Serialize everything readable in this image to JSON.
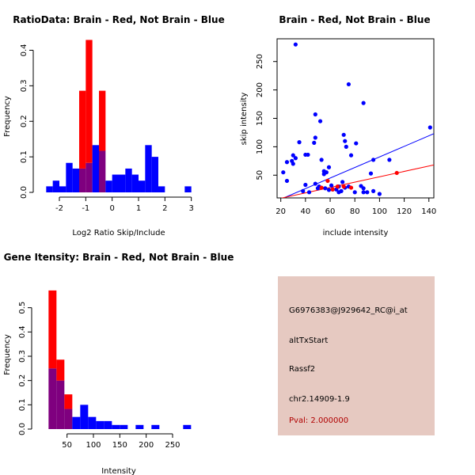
{
  "colors": {
    "brain": "#ff0000",
    "not_brain": "#0000ff",
    "overlap": "#7f007f",
    "panel_bg": "#e6c9c1",
    "pval_text": "#b00000"
  },
  "chart_data": [
    {
      "type": "histogram",
      "title": "RatioData: Brain - Red, Not Brain - Blue",
      "xlabel": "Log2 Ratio Skip/Include",
      "ylabel": "Frequency",
      "xlim": [
        -2.75,
        3.25
      ],
      "ylim": [
        0,
        0.43
      ],
      "bin_width": 0.25,
      "bin_starts": [
        -2.5,
        -2.25,
        -2.0,
        -1.75,
        -1.5,
        -1.25,
        -1.0,
        -0.75,
        -0.5,
        -0.25,
        0.0,
        0.25,
        0.5,
        0.75,
        1.0,
        1.25,
        1.5,
        1.75,
        2.0,
        2.25,
        2.5,
        2.75
      ],
      "series": [
        {
          "name": "Not Brain",
          "color": "blue",
          "values": [
            0.017,
            0.033,
            0.017,
            0.083,
            0.067,
            0.067,
            0.083,
            0.133,
            0.117,
            0.033,
            0.05,
            0.05,
            0.067,
            0.05,
            0.033,
            0.133,
            0.1,
            0.017,
            0.0,
            0.0,
            0.0,
            0.017
          ]
        },
        {
          "name": "Brain",
          "color": "red",
          "values": [
            0.0,
            0.0,
            0.0,
            0.0,
            0.0,
            0.286,
            0.429,
            0.0,
            0.286,
            0.0,
            0.0,
            0.0,
            0.0,
            0.0,
            0.0,
            0.0,
            0.0,
            0.0,
            0.0,
            0.0,
            0.0,
            0.0
          ]
        }
      ],
      "x_ticks": [
        -2,
        -1,
        0,
        1,
        2,
        3
      ],
      "x_tick_labels": [
        "-2",
        "-1",
        "0",
        "1",
        "2",
        "3"
      ],
      "y_ticks": [
        0,
        0.1,
        0.2,
        0.3,
        0.4
      ],
      "y_tick_labels": [
        "0.0",
        "0.1",
        "0.2",
        "0.3",
        "0.4"
      ]
    },
    {
      "type": "scatter",
      "title": "Brain - Red, Not Brain - Blue",
      "xlabel": "include intensity",
      "ylabel": "skip intensity",
      "xlim": [
        17,
        144
      ],
      "ylim": [
        10,
        290
      ],
      "x_ticks": [
        20,
        40,
        60,
        80,
        100,
        120,
        140
      ],
      "x_tick_labels": [
        "20",
        "40",
        "60",
        "80",
        "100",
        "120",
        "140"
      ],
      "y_ticks": [
        50,
        100,
        150,
        200,
        250
      ],
      "y_tick_labels": [
        "50",
        "100",
        "150",
        "200",
        "250"
      ],
      "series": [
        {
          "name": "Not Brain",
          "color": "blue",
          "points": [
            [
              32,
              280
            ],
            [
              75,
              210
            ],
            [
              48,
              157
            ],
            [
              87,
              177
            ],
            [
              52,
              145
            ],
            [
              48,
              116
            ],
            [
              47,
              107
            ],
            [
              35,
              108
            ],
            [
              30,
              85
            ],
            [
              29,
              75
            ],
            [
              32,
              80
            ],
            [
              30,
              70
            ],
            [
              40,
              86
            ],
            [
              42,
              86
            ],
            [
              53,
              77
            ],
            [
              71,
              121
            ],
            [
              81,
              106
            ],
            [
              73,
              100
            ],
            [
              141,
              134
            ],
            [
              25,
              73
            ],
            [
              22,
              55
            ],
            [
              25,
              40
            ],
            [
              40,
              33
            ],
            [
              43,
              20
            ],
            [
              38,
              22
            ],
            [
              48,
              35
            ],
            [
              51,
              30
            ],
            [
              50,
              27
            ],
            [
              55,
              57
            ],
            [
              59,
              64
            ],
            [
              59,
              24
            ],
            [
              56,
              27
            ],
            [
              61,
              32
            ],
            [
              62,
              25
            ],
            [
              65,
              25
            ],
            [
              67,
              30
            ],
            [
              67,
              20
            ],
            [
              69,
              22
            ],
            [
              70,
              38
            ],
            [
              72,
              28
            ],
            [
              72,
              110
            ],
            [
              75,
              30
            ],
            [
              77,
              85
            ],
            [
              80,
              20
            ],
            [
              85,
              31
            ],
            [
              87,
              20
            ],
            [
              87,
              27
            ],
            [
              90,
              20
            ],
            [
              93,
              53
            ],
            [
              95,
              77
            ],
            [
              100,
              17
            ],
            [
              108,
              77
            ],
            [
              95,
              22
            ],
            [
              55,
              52
            ],
            [
              57,
              55
            ]
          ]
        },
        {
          "name": "Brain",
          "color": "red",
          "points": [
            [
              58,
              40
            ],
            [
              62,
              25
            ],
            [
              66,
              30
            ],
            [
              71,
              30
            ],
            [
              77,
              28
            ],
            [
              114,
              54
            ],
            [
              53,
              28
            ]
          ]
        }
      ],
      "fit_lines": [
        {
          "name": "Not Brain fit",
          "color": "blue",
          "from": [
            17,
            5
          ],
          "to": [
            144,
            123
          ]
        },
        {
          "name": "Brain fit",
          "color": "red",
          "from": [
            17,
            8
          ],
          "to": [
            144,
            68
          ]
        }
      ]
    },
    {
      "type": "histogram",
      "title": "Gene Itensity: Brain - Red, Not Brain - Blue",
      "xlabel": "Intensity",
      "ylabel": "Frequency",
      "xlim": [
        -5,
        295
      ],
      "ylim": [
        0,
        0.6
      ],
      "bin_width": 15,
      "bin_starts": [
        15,
        30,
        45,
        60,
        75,
        90,
        105,
        120,
        135,
        150,
        165,
        180,
        195,
        210,
        225,
        240,
        255,
        270
      ],
      "series": [
        {
          "name": "Not Brain",
          "color": "blue",
          "values": [
            0.25,
            0.2,
            0.083,
            0.05,
            0.1,
            0.05,
            0.033,
            0.033,
            0.017,
            0.017,
            0.0,
            0.017,
            0.0,
            0.017,
            0.0,
            0.0,
            0.0,
            0.017
          ]
        },
        {
          "name": "Brain",
          "color": "red",
          "values": [
            0.571,
            0.286,
            0.143,
            0.0,
            0.0,
            0.0,
            0.0,
            0.0,
            0.0,
            0.0,
            0.0,
            0.0,
            0.0,
            0.0,
            0.0,
            0.0,
            0.0,
            0.0
          ]
        }
      ],
      "x_ticks": [
        50,
        100,
        150,
        200,
        250
      ],
      "x_tick_labels": [
        "50",
        "100",
        "150",
        "200",
        "250"
      ],
      "y_ticks": [
        0,
        0.1,
        0.2,
        0.3,
        0.4,
        0.5
      ],
      "y_tick_labels": [
        "0.0",
        "0.1",
        "0.2",
        "0.3",
        "0.4",
        "0.5"
      ]
    }
  ],
  "info_panel": {
    "probe_id": "G6976383@J929642_RC@i_at",
    "event_type": "altTxStart",
    "gene": "Rassf2",
    "location": "chr2.14909-1.9",
    "pval": "Pval: 2.000000"
  }
}
